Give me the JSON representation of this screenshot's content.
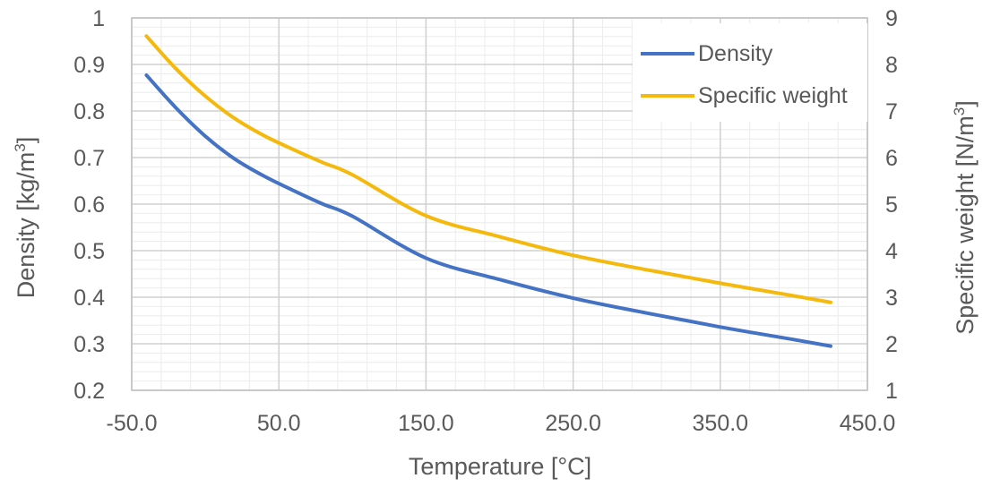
{
  "chart_data": {
    "type": "line",
    "title": "",
    "xlabel": "Temperature [°C]",
    "ylabel_left": {
      "text": "Density [kg/m",
      "sup": "3",
      "close": "]"
    },
    "ylabel_right": {
      "text": "Specific weight [N/m",
      "sup": "3",
      "close": "]"
    },
    "xlim": [
      -50,
      450
    ],
    "ylim_left": [
      0.2,
      1.0
    ],
    "ylim_right": [
      1,
      9
    ],
    "x_ticks": [
      -50,
      50,
      150,
      250,
      350,
      450
    ],
    "x_tick_labels": [
      "-50.0",
      "50.0",
      "150.0",
      "250.0",
      "350.0",
      "450.0"
    ],
    "y_left_ticks": [
      0.2,
      0.3,
      0.4,
      0.5,
      0.6,
      0.7,
      0.8,
      0.9,
      1.0
    ],
    "y_left_tick_labels": [
      "0.2",
      "0.3",
      "0.4",
      "0.5",
      "0.6",
      "0.7",
      "0.8",
      "0.9",
      "1"
    ],
    "y_right_ticks": [
      1,
      2,
      3,
      4,
      5,
      6,
      7,
      8,
      9
    ],
    "y_right_tick_labels": [
      "1",
      "2",
      "3",
      "4",
      "5",
      "6",
      "7",
      "8",
      "9"
    ],
    "grid": true,
    "legend_position": "top-right",
    "series": [
      {
        "name": "Density",
        "axis": "left",
        "color": "#4472c4",
        "x": [
          -40,
          -20,
          0,
          20,
          40,
          60,
          80,
          100,
          150,
          200,
          250,
          300,
          350,
          400,
          425
        ],
        "y": [
          0.877,
          0.807,
          0.746,
          0.697,
          0.66,
          0.629,
          0.6,
          0.574,
          0.484,
          0.438,
          0.398,
          0.366,
          0.336,
          0.309,
          0.295
        ]
      },
      {
        "name": "Specific weight",
        "axis": "right",
        "color": "#f5b90d",
        "x": [
          -40,
          -20,
          0,
          20,
          40,
          60,
          80,
          100,
          150,
          200,
          250,
          300,
          350,
          400,
          425
        ],
        "y": [
          8.61,
          7.91,
          7.32,
          6.84,
          6.47,
          6.17,
          5.89,
          5.63,
          4.75,
          4.3,
          3.9,
          3.59,
          3.3,
          3.03,
          2.89
        ]
      }
    ]
  }
}
